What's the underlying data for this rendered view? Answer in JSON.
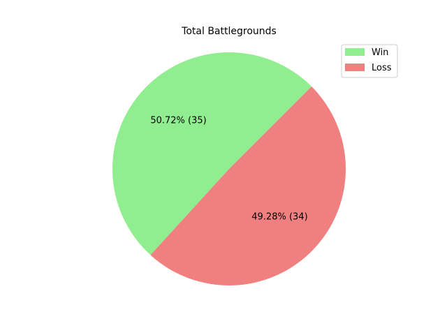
{
  "chart_data": {
    "type": "pie",
    "title": "Total Battlegrounds",
    "categories": [
      "Win",
      "Loss"
    ],
    "values": [
      35,
      34
    ],
    "labels": [
      "50.72% (35)",
      "49.28% (34)"
    ],
    "colors": [
      "#90ee90",
      "#f08080"
    ],
    "start_angle_deg": 45,
    "direction": "counterclockwise",
    "legend_position": "top-right"
  }
}
